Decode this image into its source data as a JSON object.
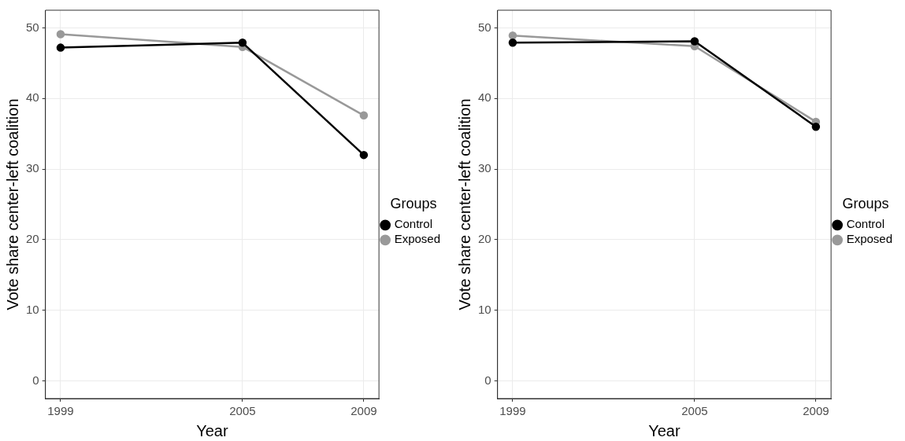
{
  "chart_data": [
    {
      "type": "line",
      "xlabel": "Year",
      "ylabel": "Vote share center-left coalition",
      "legend_title": "Groups",
      "x": [
        1999,
        2005,
        2009
      ],
      "series": [
        {
          "name": "Control",
          "color": "#000000",
          "values": [
            47.2,
            47.9,
            32.0
          ]
        },
        {
          "name": "Exposed",
          "color": "#999999",
          "values": [
            49.1,
            47.3,
            37.6
          ]
        }
      ],
      "xlim": [
        1998.5,
        2009.5
      ],
      "xticks": [
        1999,
        2005,
        2009
      ],
      "ylim": [
        -2.5,
        52.5
      ],
      "yticks": [
        0,
        10,
        20,
        30,
        40,
        50
      ],
      "grid": true,
      "legend": "right",
      "marker": "circle",
      "line_style": "solid"
    },
    {
      "type": "line",
      "xlabel": "Year",
      "ylabel": "Vote share center-left coalition",
      "legend_title": "Groups",
      "x": [
        1999,
        2005,
        2009
      ],
      "series": [
        {
          "name": "Control",
          "color": "#000000",
          "values": [
            47.9,
            48.1,
            36.0
          ]
        },
        {
          "name": "Exposed",
          "color": "#999999",
          "values": [
            48.9,
            47.4,
            36.7
          ]
        }
      ],
      "xlim": [
        1998.5,
        2009.5
      ],
      "xticks": [
        1999,
        2005,
        2009
      ],
      "ylim": [
        -2.5,
        52.5
      ],
      "yticks": [
        0,
        10,
        20,
        30,
        40,
        50
      ],
      "grid": true,
      "legend": "right",
      "marker": "circle",
      "line_style": "solid"
    }
  ]
}
